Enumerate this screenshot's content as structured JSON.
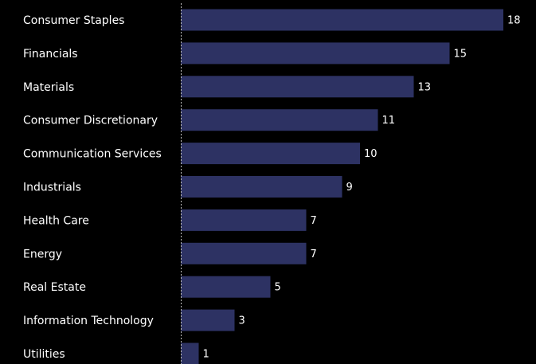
{
  "chart_data": {
    "type": "bar",
    "orientation": "horizontal",
    "categories": [
      "Consumer Staples",
      "Financials",
      "Materials",
      "Consumer Discretionary",
      "Communication Services",
      "Industrials",
      "Health Care",
      "Energy",
      "Real Estate",
      "Information Technology",
      "Utilities"
    ],
    "values": [
      18,
      15,
      13,
      11,
      10,
      9,
      7,
      7,
      5,
      3,
      1
    ],
    "xlim": [
      0,
      18
    ],
    "grid": false,
    "legend": "none",
    "data_labels": true
  },
  "colors": {
    "background": "#000000",
    "bar": "#2d3263",
    "text": "#ffffff",
    "axis": "#bbbbbb"
  }
}
